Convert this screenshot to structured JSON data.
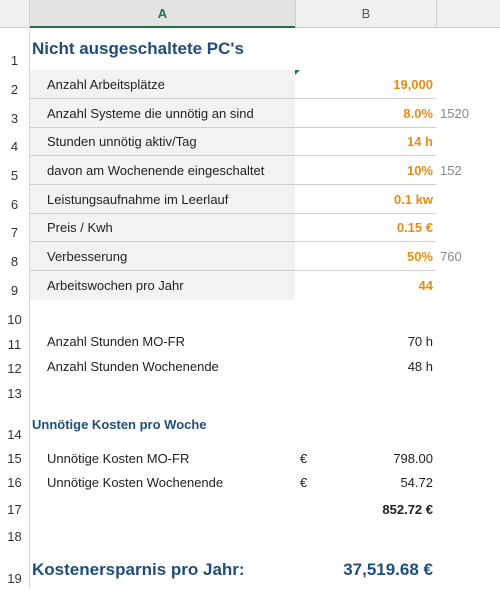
{
  "columns": [
    "A",
    "B"
  ],
  "rows": [
    "1",
    "2",
    "3",
    "4",
    "5",
    "6",
    "7",
    "8",
    "9",
    "10",
    "11",
    "12",
    "13",
    "14",
    "15",
    "16",
    "17",
    "18",
    "19"
  ],
  "title": "Nicht ausgeschaltete PC's",
  "inputs": [
    {
      "label": "Anzahl Arbeitsplätze",
      "value": "19,000",
      "note": ""
    },
    {
      "label": "Anzahl Systeme die unnötig an sind",
      "value": "8.0%",
      "note": "1520"
    },
    {
      "label": "Stunden unnötig aktiv/Tag",
      "value": "14 h",
      "note": ""
    },
    {
      "label": "davon am Wochenende eingeschaltet",
      "value": "10%",
      "note": "152"
    },
    {
      "label": "Leistungsaufnahme im Leerlauf",
      "value": "0.1 kw",
      "note": ""
    },
    {
      "label": "Preis / Kwh",
      "value": "0.15 €",
      "note": ""
    },
    {
      "label": "Verbesserung",
      "value": "50%",
      "note": "760"
    },
    {
      "label": "Arbeitswochen pro Jahr",
      "value": "44",
      "note": ""
    }
  ],
  "hours": [
    {
      "label": "Anzahl Stunden MO-FR",
      "value": "70 h"
    },
    {
      "label": "Anzahl Stunden Wochenende",
      "value": "48 h"
    }
  ],
  "costs_title": "Unnötige Kosten pro Woche",
  "costs": [
    {
      "label": "Unnötige Kosten MO-FR",
      "currency": "€",
      "value": "798.00"
    },
    {
      "label": "Unnötige Kosten Wochenende",
      "currency": "€",
      "value": "54.72"
    }
  ],
  "costs_total": "852.72 €",
  "savings_label": "Kostenersparnis pro Jahr:",
  "savings_value": "37,519.68 €"
}
